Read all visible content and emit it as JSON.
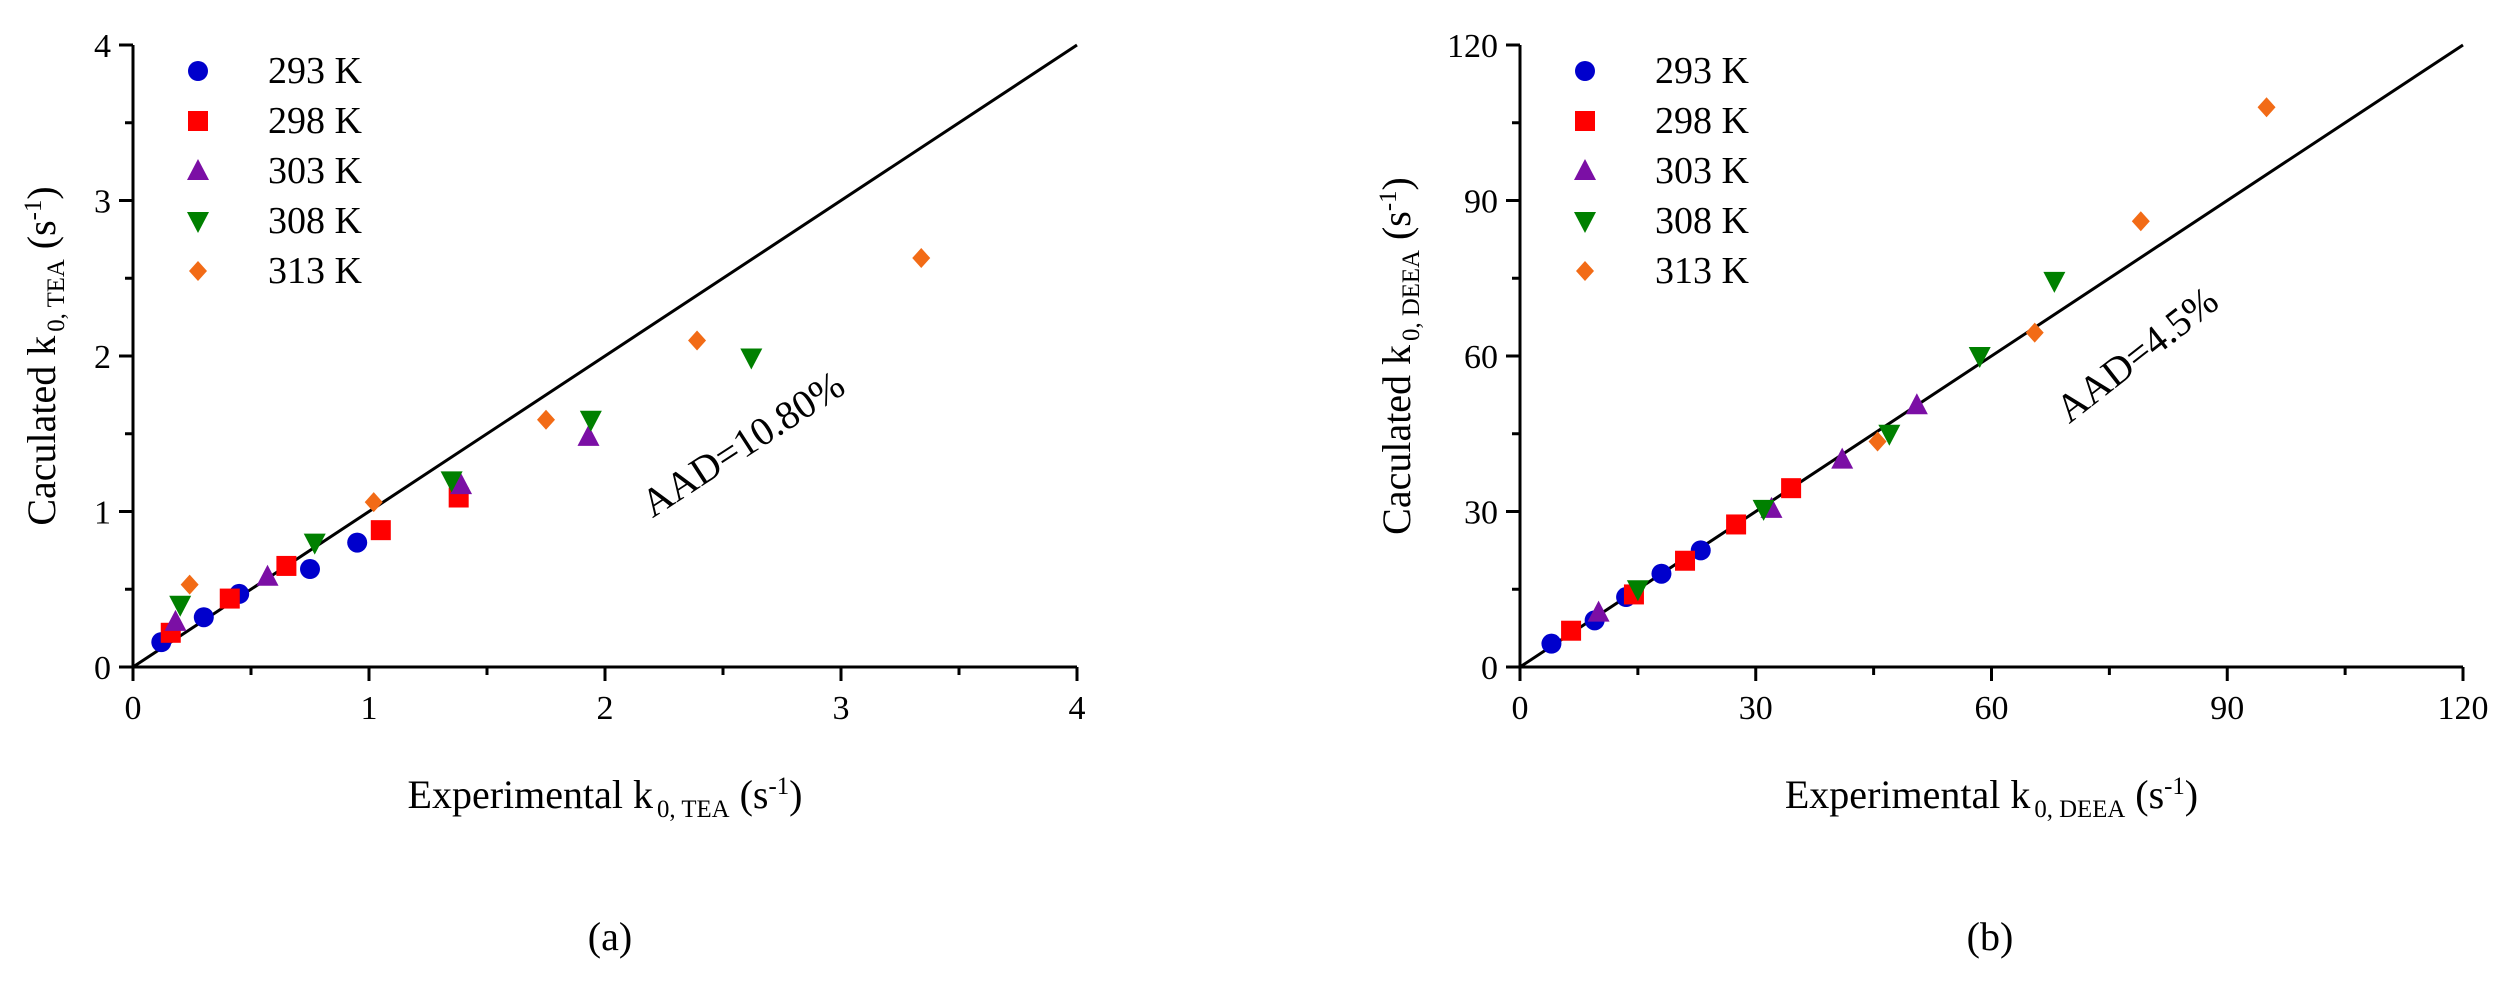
{
  "chart_data": [
    {
      "type": "scatter",
      "caption": "(a)",
      "xlabel": {
        "main": "Experimental k",
        "sub": "0, TEA",
        "tail": " (s",
        "sup": "-1",
        "end": ")"
      },
      "ylabel": {
        "main": "Caculated k",
        "sub": "0, TEA",
        "tail": " (s",
        "sup": "-1",
        "end": ")"
      },
      "xlim": [
        0,
        4
      ],
      "ylim": [
        0,
        4
      ],
      "xticks": [
        "0",
        "1",
        "2",
        "3",
        "4"
      ],
      "yticks": [
        "0",
        "1",
        "2",
        "3",
        "4"
      ],
      "annotation": "AAD=10.80%",
      "diagonal": [
        [
          0,
          0
        ],
        [
          4,
          4
        ]
      ],
      "series": [
        {
          "name": "293 K",
          "marker": "circle",
          "color": "#0000CC",
          "points": [
            [
              0.12,
              0.16
            ],
            [
              0.3,
              0.32
            ],
            [
              0.45,
              0.47
            ],
            [
              0.75,
              0.63
            ],
            [
              0.95,
              0.8
            ]
          ]
        },
        {
          "name": "298 K",
          "marker": "square",
          "color": "#FF0000",
          "points": [
            [
              0.16,
              0.22
            ],
            [
              0.41,
              0.44
            ],
            [
              0.65,
              0.65
            ],
            [
              1.05,
              0.88
            ],
            [
              1.38,
              1.09
            ]
          ]
        },
        {
          "name": "303 K",
          "marker": "triangle-up",
          "color": "#7B0FA5",
          "points": [
            [
              0.18,
              0.29
            ],
            [
              0.57,
              0.58
            ],
            [
              1.39,
              1.17
            ],
            [
              1.93,
              1.48
            ]
          ]
        },
        {
          "name": "308 K",
          "marker": "triangle-down",
          "color": "#008000",
          "points": [
            [
              0.2,
              0.4
            ],
            [
              0.77,
              0.8
            ],
            [
              1.35,
              1.2
            ],
            [
              1.94,
              1.59
            ],
            [
              2.62,
              1.99
            ]
          ]
        },
        {
          "name": "313 K",
          "marker": "diamond",
          "color": "#F26B16",
          "points": [
            [
              0.24,
              0.53
            ],
            [
              1.02,
              1.06
            ],
            [
              1.75,
              1.59
            ],
            [
              2.39,
              2.1
            ],
            [
              3.34,
              2.63
            ]
          ]
        }
      ]
    },
    {
      "type": "scatter",
      "caption": "(b)",
      "xlabel": {
        "main": "Experimental k",
        "sub": "0, DEEA",
        "tail": " (s",
        "sup": "-1",
        "end": ")"
      },
      "ylabel": {
        "main": "Caculated k",
        "sub": "0, DEEA",
        "tail": " (s",
        "sup": "-1",
        "end": ")"
      },
      "xlim": [
        0,
        120
      ],
      "ylim": [
        0,
        120
      ],
      "xticks": [
        "0",
        "30",
        "60",
        "90",
        "120"
      ],
      "yticks": [
        "0",
        "30",
        "60",
        "90",
        "120"
      ],
      "annotation": "AAD=4.5%",
      "diagonal": [
        [
          0,
          0
        ],
        [
          120,
          120
        ]
      ],
      "series": [
        {
          "name": "293 K",
          "marker": "circle",
          "color": "#0000CC",
          "points": [
            [
              4,
              4.5
            ],
            [
              9.5,
              9
            ],
            [
              13.5,
              13.5
            ],
            [
              18,
              18
            ],
            [
              23,
              22.5
            ]
          ]
        },
        {
          "name": "298 K",
          "marker": "square",
          "color": "#FF0000",
          "points": [
            [
              6.5,
              7
            ],
            [
              14.5,
              14
            ],
            [
              21,
              20.5
            ],
            [
              27.5,
              27.5
            ],
            [
              34.5,
              34.5
            ]
          ]
        },
        {
          "name": "303 K",
          "marker": "triangle-up",
          "color": "#7B0FA5",
          "points": [
            [
              10,
              10.5
            ],
            [
              32,
              30.5
            ],
            [
              41,
              40
            ],
            [
              50.5,
              50.5
            ]
          ]
        },
        {
          "name": "308 K",
          "marker": "triangle-down",
          "color": "#008000",
          "points": [
            [
              15,
              15
            ],
            [
              31,
              30.5
            ],
            [
              47,
              45
            ],
            [
              58.5,
              60
            ],
            [
              68,
              74.5
            ]
          ]
        },
        {
          "name": "313 K",
          "marker": "diamond",
          "color": "#F26B16",
          "points": [
            [
              45.5,
              43.5
            ],
            [
              65.5,
              64.5
            ],
            [
              79,
              86
            ],
            [
              95,
              108
            ]
          ]
        }
      ]
    }
  ]
}
